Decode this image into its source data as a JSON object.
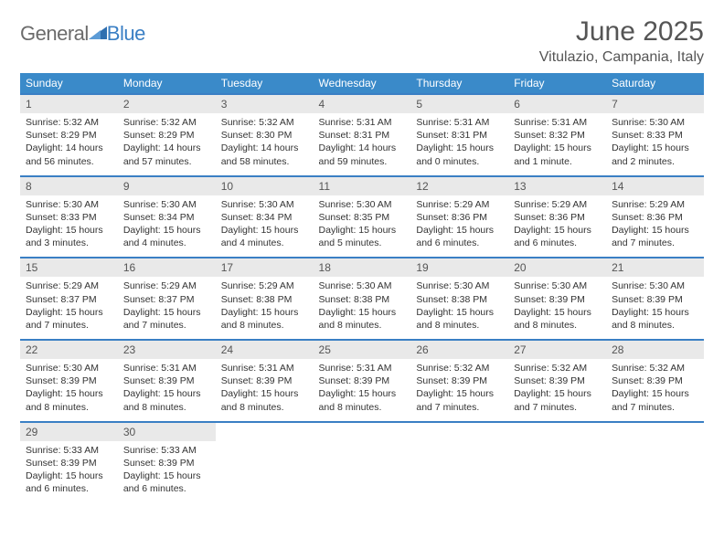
{
  "logo": {
    "general": "General",
    "blue": "Blue"
  },
  "title": "June 2025",
  "location": "Vitulazio, Campania, Italy",
  "colors": {
    "header_bg": "#3a8ac9",
    "header_text": "#ffffff",
    "row_border": "#3a7fc4",
    "daynum_bg": "#e9e9e9",
    "text": "#333333",
    "logo_gray": "#6b6b6b",
    "logo_blue": "#3a7fc4"
  },
  "day_headers": [
    "Sunday",
    "Monday",
    "Tuesday",
    "Wednesday",
    "Thursday",
    "Friday",
    "Saturday"
  ],
  "weeks": [
    [
      {
        "n": "1",
        "sunrise": "5:32 AM",
        "sunset": "8:29 PM",
        "daylight": "14 hours and 56 minutes."
      },
      {
        "n": "2",
        "sunrise": "5:32 AM",
        "sunset": "8:29 PM",
        "daylight": "14 hours and 57 minutes."
      },
      {
        "n": "3",
        "sunrise": "5:32 AM",
        "sunset": "8:30 PM",
        "daylight": "14 hours and 58 minutes."
      },
      {
        "n": "4",
        "sunrise": "5:31 AM",
        "sunset": "8:31 PM",
        "daylight": "14 hours and 59 minutes."
      },
      {
        "n": "5",
        "sunrise": "5:31 AM",
        "sunset": "8:31 PM",
        "daylight": "15 hours and 0 minutes."
      },
      {
        "n": "6",
        "sunrise": "5:31 AM",
        "sunset": "8:32 PM",
        "daylight": "15 hours and 1 minute."
      },
      {
        "n": "7",
        "sunrise": "5:30 AM",
        "sunset": "8:33 PM",
        "daylight": "15 hours and 2 minutes."
      }
    ],
    [
      {
        "n": "8",
        "sunrise": "5:30 AM",
        "sunset": "8:33 PM",
        "daylight": "15 hours and 3 minutes."
      },
      {
        "n": "9",
        "sunrise": "5:30 AM",
        "sunset": "8:34 PM",
        "daylight": "15 hours and 4 minutes."
      },
      {
        "n": "10",
        "sunrise": "5:30 AM",
        "sunset": "8:34 PM",
        "daylight": "15 hours and 4 minutes."
      },
      {
        "n": "11",
        "sunrise": "5:30 AM",
        "sunset": "8:35 PM",
        "daylight": "15 hours and 5 minutes."
      },
      {
        "n": "12",
        "sunrise": "5:29 AM",
        "sunset": "8:36 PM",
        "daylight": "15 hours and 6 minutes."
      },
      {
        "n": "13",
        "sunrise": "5:29 AM",
        "sunset": "8:36 PM",
        "daylight": "15 hours and 6 minutes."
      },
      {
        "n": "14",
        "sunrise": "5:29 AM",
        "sunset": "8:36 PM",
        "daylight": "15 hours and 7 minutes."
      }
    ],
    [
      {
        "n": "15",
        "sunrise": "5:29 AM",
        "sunset": "8:37 PM",
        "daylight": "15 hours and 7 minutes."
      },
      {
        "n": "16",
        "sunrise": "5:29 AM",
        "sunset": "8:37 PM",
        "daylight": "15 hours and 7 minutes."
      },
      {
        "n": "17",
        "sunrise": "5:29 AM",
        "sunset": "8:38 PM",
        "daylight": "15 hours and 8 minutes."
      },
      {
        "n": "18",
        "sunrise": "5:30 AM",
        "sunset": "8:38 PM",
        "daylight": "15 hours and 8 minutes."
      },
      {
        "n": "19",
        "sunrise": "5:30 AM",
        "sunset": "8:38 PM",
        "daylight": "15 hours and 8 minutes."
      },
      {
        "n": "20",
        "sunrise": "5:30 AM",
        "sunset": "8:39 PM",
        "daylight": "15 hours and 8 minutes."
      },
      {
        "n": "21",
        "sunrise": "5:30 AM",
        "sunset": "8:39 PM",
        "daylight": "15 hours and 8 minutes."
      }
    ],
    [
      {
        "n": "22",
        "sunrise": "5:30 AM",
        "sunset": "8:39 PM",
        "daylight": "15 hours and 8 minutes."
      },
      {
        "n": "23",
        "sunrise": "5:31 AM",
        "sunset": "8:39 PM",
        "daylight": "15 hours and 8 minutes."
      },
      {
        "n": "24",
        "sunrise": "5:31 AM",
        "sunset": "8:39 PM",
        "daylight": "15 hours and 8 minutes."
      },
      {
        "n": "25",
        "sunrise": "5:31 AM",
        "sunset": "8:39 PM",
        "daylight": "15 hours and 8 minutes."
      },
      {
        "n": "26",
        "sunrise": "5:32 AM",
        "sunset": "8:39 PM",
        "daylight": "15 hours and 7 minutes."
      },
      {
        "n": "27",
        "sunrise": "5:32 AM",
        "sunset": "8:39 PM",
        "daylight": "15 hours and 7 minutes."
      },
      {
        "n": "28",
        "sunrise": "5:32 AM",
        "sunset": "8:39 PM",
        "daylight": "15 hours and 7 minutes."
      }
    ],
    [
      {
        "n": "29",
        "sunrise": "5:33 AM",
        "sunset": "8:39 PM",
        "daylight": "15 hours and 6 minutes."
      },
      {
        "n": "30",
        "sunrise": "5:33 AM",
        "sunset": "8:39 PM",
        "daylight": "15 hours and 6 minutes."
      },
      null,
      null,
      null,
      null,
      null
    ]
  ],
  "labels": {
    "sunrise": "Sunrise:",
    "sunset": "Sunset:",
    "daylight": "Daylight:"
  }
}
